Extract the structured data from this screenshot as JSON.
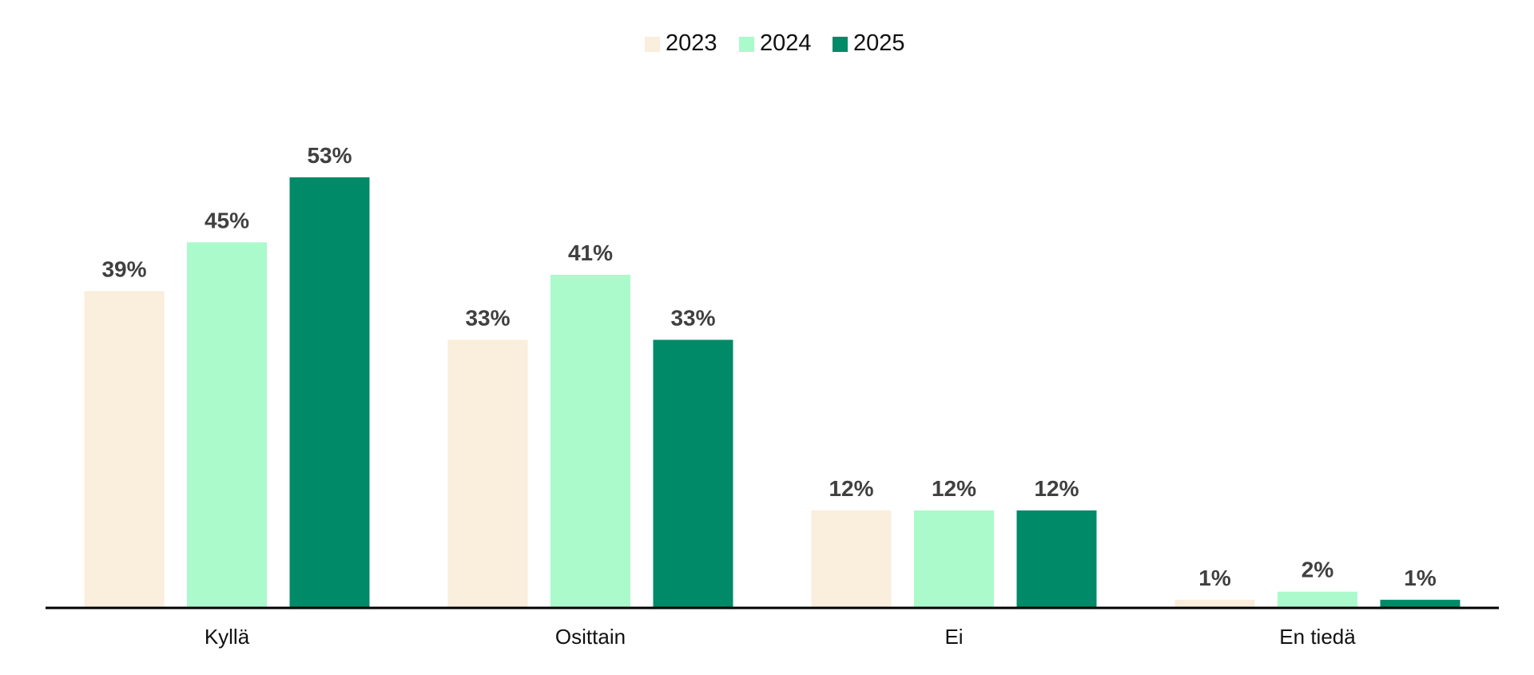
{
  "chart_data": {
    "type": "bar",
    "categories": [
      "Kyllä",
      "Osittain",
      "Ei",
      "En tiedä"
    ],
    "series": [
      {
        "name": "2023",
        "color": "#FAEEDC",
        "values": [
          39,
          33,
          12,
          1
        ],
        "labels": [
          "39%",
          "33%",
          "12%",
          "1%"
        ]
      },
      {
        "name": "2024",
        "color": "#ABFACB",
        "values": [
          45,
          41,
          12,
          2
        ],
        "labels": [
          "45%",
          "41%",
          "12%",
          "2%"
        ]
      },
      {
        "name": "2025",
        "color": "#008A68",
        "values": [
          53,
          33,
          12,
          1
        ],
        "labels": [
          "53%",
          "33%",
          "12%",
          "1%"
        ]
      }
    ],
    "title": "",
    "xlabel": "",
    "ylabel": "",
    "ylim": [
      0,
      60
    ],
    "grid": false,
    "legend_position": "top-center",
    "axis_color": "#000000",
    "label_color": "#404040"
  }
}
